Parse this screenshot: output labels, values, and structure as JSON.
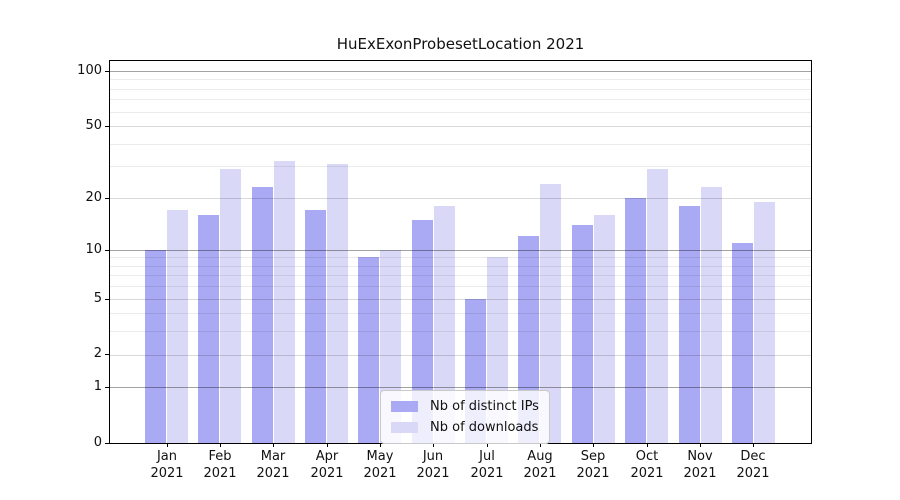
{
  "chart_data": {
    "type": "bar",
    "title": "HuExExonProbesetLocation 2021",
    "categories": [
      "Jan 2021",
      "Feb 2021",
      "Mar 2021",
      "Apr 2021",
      "May 2021",
      "Jun 2021",
      "Jul 2021",
      "Aug 2021",
      "Sep 2021",
      "Oct 2021",
      "Nov 2021",
      "Dec 2021"
    ],
    "x_months": [
      "Jan",
      "Feb",
      "Mar",
      "Apr",
      "May",
      "Jun",
      "Jul",
      "Aug",
      "Sep",
      "Oct",
      "Nov",
      "Dec"
    ],
    "x_year": "2021",
    "series": [
      {
        "name": "Nb of distinct IPs",
        "color": "#a9a9f4",
        "values": [
          10,
          16,
          23,
          17,
          9,
          15,
          5,
          12,
          14,
          20,
          18,
          11
        ]
      },
      {
        "name": "Nb of downloads",
        "color": "#d9d9f7",
        "values": [
          17,
          29,
          32,
          31,
          10,
          18,
          9,
          24,
          16,
          29,
          23,
          19
        ]
      }
    ],
    "yscale": "log1p",
    "yticks": [
      0,
      1,
      2,
      5,
      10,
      20,
      50,
      100
    ],
    "yticks_minor": [
      3,
      4,
      6,
      7,
      8,
      9,
      30,
      40,
      60,
      70,
      80,
      90
    ],
    "ylim": [
      0,
      113
    ],
    "grid": true,
    "legend_position": "lower center",
    "axis_color": "#000000",
    "text_color": "#111111"
  }
}
